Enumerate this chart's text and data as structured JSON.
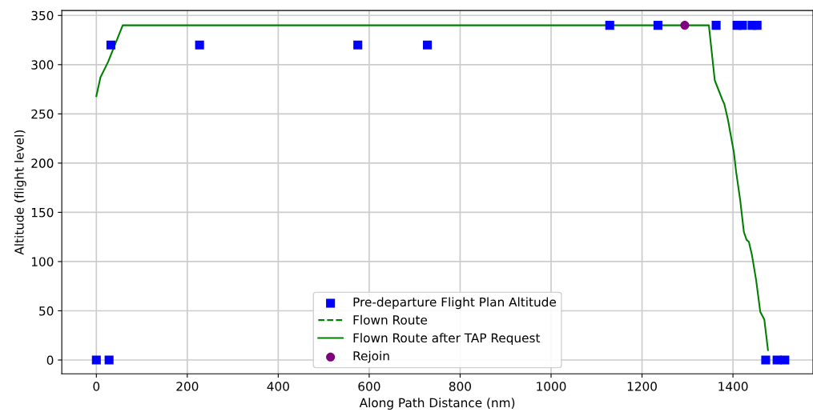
{
  "chart_data": {
    "type": "line",
    "xlabel": "Along Path Distance (nm)",
    "ylabel": "Altitude (flight level)",
    "xlim": [
      -76,
      1576
    ],
    "ylim": [
      -14,
      355
    ],
    "xticks": [
      0,
      200,
      400,
      600,
      800,
      1000,
      1200,
      1400
    ],
    "yticks": [
      0,
      50,
      100,
      150,
      200,
      250,
      300,
      350
    ],
    "grid": true,
    "legend": "bottom",
    "series": [
      {
        "name": "Pre-departure Flight Plan Altitude",
        "type": "scatter",
        "marker": "square",
        "color": "#0000ff",
        "x": [
          0,
          28,
          32,
          227,
          575,
          728,
          1129,
          1235,
          1363,
          1409,
          1421,
          1442,
          1453,
          1472,
          1497,
          1514
        ],
        "values": [
          0,
          0,
          320,
          320,
          320,
          320,
          340,
          340,
          340,
          340,
          340,
          340,
          340,
          0,
          0,
          0
        ]
      },
      {
        "name": "Flown Route",
        "line_style": "dashed",
        "color": "#008000"
      },
      {
        "name": "Flown Route after TAP Request",
        "line_style": "solid",
        "color": "#008000",
        "x": [
          0,
          9,
          26,
          58,
          1347,
          1360,
          1377,
          1381,
          1389,
          1402,
          1407,
          1416,
          1424,
          1430,
          1435,
          1442,
          1451,
          1460,
          1469,
          1477
        ],
        "values": [
          268,
          287,
          303,
          340,
          340,
          284,
          264,
          260,
          244,
          211,
          191,
          162,
          130,
          122,
          120,
          106,
          81,
          49,
          41,
          10
        ]
      },
      {
        "name": "Rejoin",
        "type": "scatter",
        "marker": "circle",
        "color": "#800080",
        "x": [
          1294
        ],
        "values": [
          340
        ]
      }
    ]
  }
}
